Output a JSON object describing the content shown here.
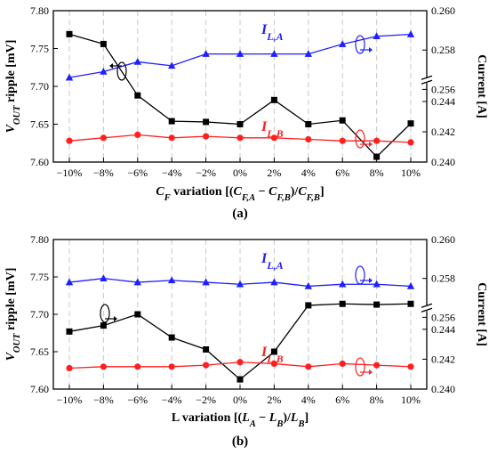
{
  "chart_data": [
    {
      "type": "line",
      "caption": "(a)",
      "xlabel": "C_F variation  [(C_F,A − C_F,B)/C_F,B]",
      "ylabel_left": "V_OUT ripple [mV]",
      "ylabel_right": "Current [A]",
      "categories": [
        "−10%",
        "−8%",
        "−6%",
        "−4%",
        "−2%",
        "0%",
        "2%",
        "4%",
        "6%",
        "8%",
        "10%"
      ],
      "y_left": {
        "range": [
          7.6,
          7.8
        ],
        "ticks": [
          "7.60",
          "7.65",
          "7.70",
          "7.75",
          "7.80"
        ]
      },
      "y_right": {
        "upper": {
          "range": [
            0.256,
            0.26
          ],
          "ticks": [
            "0.256",
            "0.258",
            "0.260"
          ]
        },
        "lower": {
          "range": [
            0.24,
            0.246
          ],
          "ticks": [
            "0.240",
            "0.242",
            "0.244"
          ]
        },
        "axis_break": true
      },
      "series": [
        {
          "name": "",
          "axis": "left",
          "color": "#000000",
          "marker": "square",
          "values": [
            7.769,
            7.756,
            7.688,
            7.654,
            7.653,
            7.65,
            7.682,
            7.65,
            7.655,
            7.607,
            7.651
          ]
        },
        {
          "name": "I_L,A",
          "axis": "right-upper",
          "color": "#1f1fff",
          "marker": "triangle",
          "values": [
            0.2566,
            0.2569,
            0.2574,
            0.2572,
            0.2578,
            0.2578,
            0.2578,
            0.2578,
            0.2583,
            0.2587,
            0.2588
          ]
        },
        {
          "name": "I_L,B",
          "axis": "right-lower",
          "color": "#ff1f1f",
          "marker": "circle",
          "values": [
            0.2414,
            0.2416,
            0.2418,
            0.2416,
            0.2417,
            0.2416,
            0.2416,
            0.2415,
            0.2414,
            0.2414,
            0.2413
          ]
        }
      ]
    },
    {
      "type": "line",
      "caption": "(b)",
      "xlabel": "L variation  [(L_A − L_B)/L_B]",
      "ylabel_left": "V_OUT ripple [mV]",
      "ylabel_right": "Current [A]",
      "categories": [
        "−10%",
        "−8%",
        "−6%",
        "−4%",
        "−2%",
        "0%",
        "2%",
        "4%",
        "6%",
        "8%",
        "10%"
      ],
      "y_left": {
        "range": [
          7.6,
          7.8
        ],
        "ticks": [
          "7.60",
          "7.65",
          "7.70",
          "7.75",
          "7.80"
        ]
      },
      "y_right": {
        "upper": {
          "range": [
            0.256,
            0.26
          ],
          "ticks": [
            "0.256",
            "0.258",
            "0.260"
          ]
        },
        "lower": {
          "range": [
            0.24,
            0.246
          ],
          "ticks": [
            "0.240",
            "0.242",
            "0.244"
          ]
        },
        "axis_break": true
      },
      "series": [
        {
          "name": "",
          "axis": "left",
          "color": "#000000",
          "marker": "square",
          "values": [
            7.677,
            7.685,
            7.7,
            7.669,
            7.653,
            7.613,
            7.65,
            7.712,
            7.714,
            7.713,
            7.714
          ]
        },
        {
          "name": "I_L,A",
          "axis": "right-upper",
          "color": "#1f1fff",
          "marker": "triangle",
          "values": [
            0.2578,
            0.258,
            0.2578,
            0.2579,
            0.2578,
            0.2577,
            0.2578,
            0.2576,
            0.2577,
            0.2577,
            0.2576
          ]
        },
        {
          "name": "I_L,B",
          "axis": "right-lower",
          "color": "#ff1f1f",
          "marker": "circle",
          "values": [
            0.2414,
            0.2415,
            0.2415,
            0.2415,
            0.2416,
            0.2418,
            0.2417,
            0.2415,
            0.2417,
            0.2416,
            0.2415
          ]
        }
      ]
    }
  ]
}
